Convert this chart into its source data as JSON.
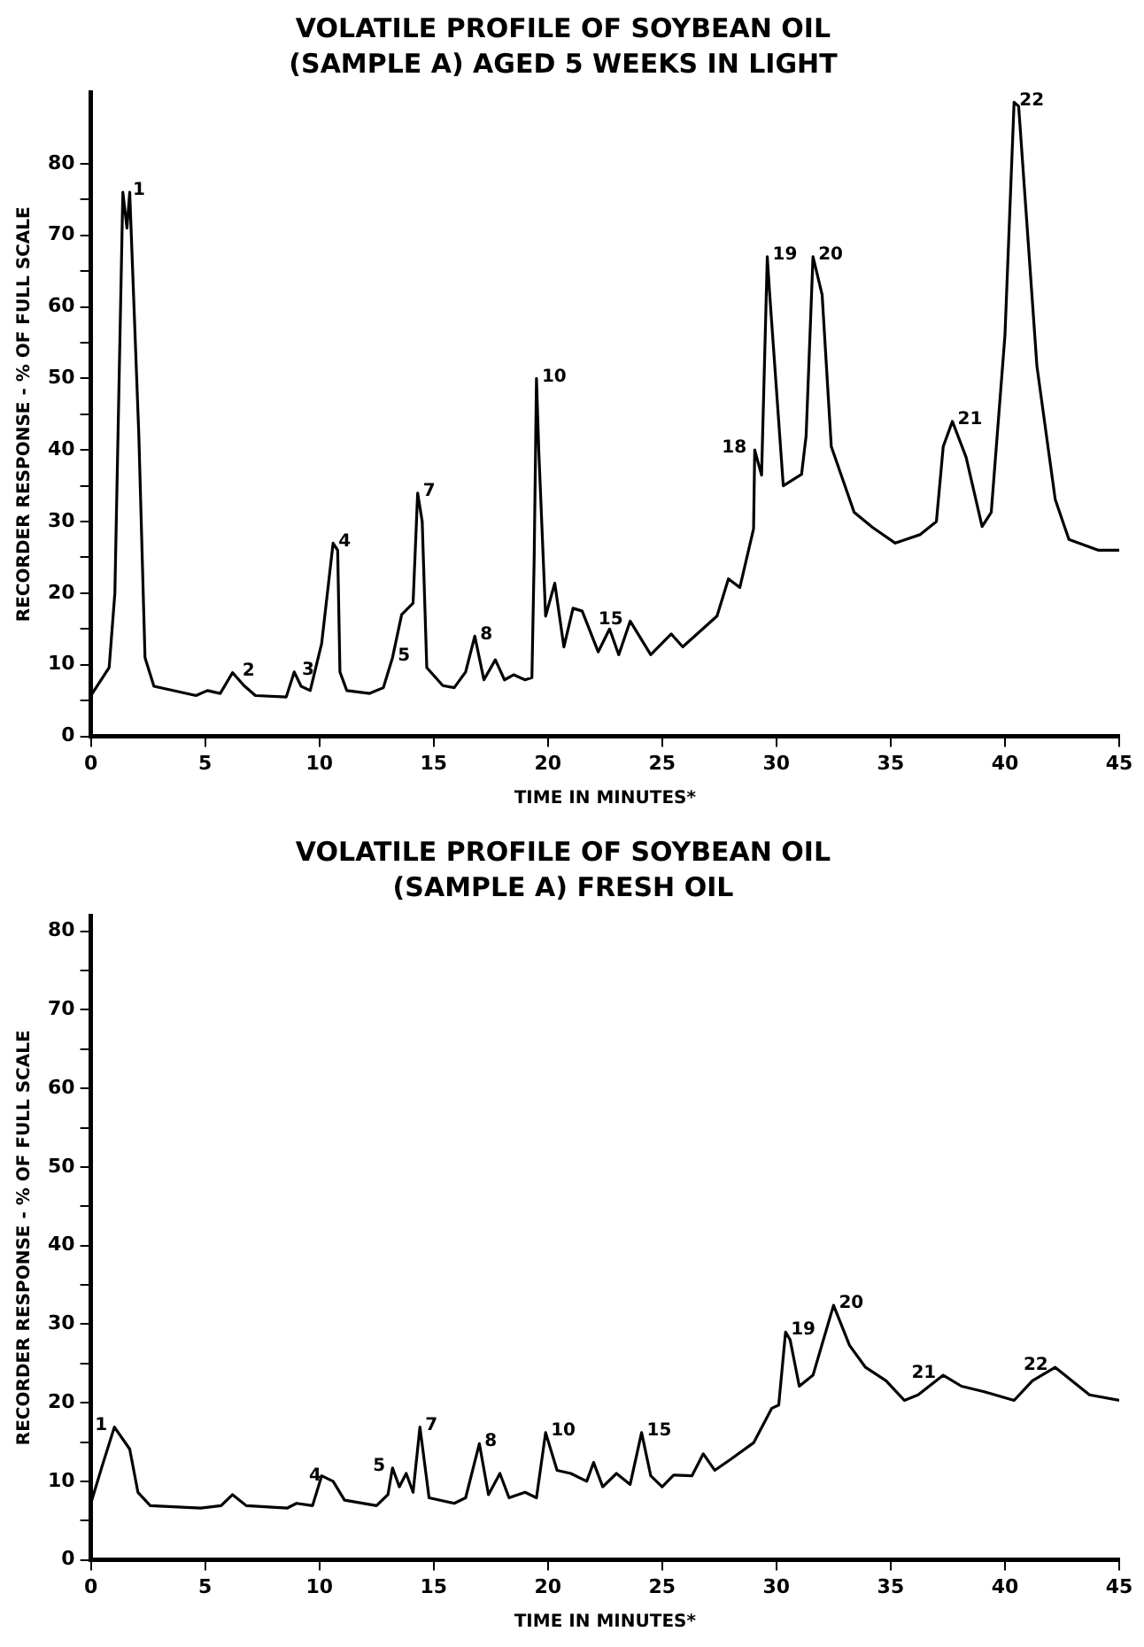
{
  "chart_data": [
    {
      "type": "line",
      "title": "VOLATILE PROFILE OF SOYBEAN OIL",
      "subtitle": "(SAMPLE A) AGED 5 WEEKS IN LIGHT",
      "xlabel": "TIME IN MINUTES*",
      "ylabel": "RECORDER RESPONSE - % OF FULL SCALE",
      "grid": false,
      "legend": false,
      "marker": "none",
      "line_style": "solid",
      "xlim": [
        0,
        45
      ],
      "xticks": [
        0,
        5,
        10,
        15,
        20,
        25,
        30,
        35,
        40,
        45
      ],
      "ylim": [
        0,
        90
      ],
      "yticks": [
        0,
        {
          "value": 5,
          "label": null
        },
        10,
        {
          "value": 15,
          "label": null
        },
        20,
        {
          "value": 25,
          "label": null
        },
        30,
        {
          "value": 35,
          "label": null
        },
        40,
        {
          "value": 45,
          "label": null
        },
        50,
        {
          "value": 55,
          "label": null
        },
        60,
        {
          "value": 65,
          "label": null
        },
        70,
        {
          "value": 75,
          "label": null
        },
        80
      ],
      "series": [
        {
          "color": "#000000",
          "x": [
            0,
            0.8,
            1.05,
            1.4,
            1.58,
            1.7,
            2.1,
            2.37,
            2.76,
            4.6,
            5.1,
            5.66,
            6.2,
            6.7,
            7.2,
            8.55,
            8.9,
            9.2,
            9.6,
            10.1,
            10.6,
            10.8,
            10.9,
            11.2,
            12.2,
            12.8,
            13.2,
            13.6,
            14.1,
            14.3,
            14.5,
            14.7,
            15.4,
            15.9,
            16.4,
            16.8,
            17.2,
            17.7,
            18.1,
            18.5,
            19.0,
            19.3,
            19.4,
            19.5,
            19.6,
            19.9,
            20.3,
            20.7,
            21.1,
            21.5,
            22.2,
            22.7,
            23.1,
            23.6,
            24.5,
            25.4,
            25.9,
            27.4,
            27.9,
            28.4,
            29.0,
            29.05,
            29.35,
            29.6,
            29.7,
            30.3,
            31.1,
            31.3,
            31.6,
            32.0,
            32.4,
            33.4,
            34.2,
            35.2,
            36.3,
            37.0,
            37.3,
            37.7,
            38.3,
            39.0,
            39.4,
            40.0,
            40.4,
            40.6,
            41.4,
            42.2,
            42.8,
            44.1,
            45
          ],
          "values": [
            5.7,
            9.6,
            20,
            76,
            71,
            76,
            42,
            11,
            7,
            5.7,
            6.4,
            6,
            8.9,
            7.1,
            5.7,
            5.5,
            9,
            7,
            6.4,
            13,
            27,
            26,
            9,
            6.4,
            6,
            6.8,
            11,
            17,
            18.6,
            34,
            30,
            9.6,
            7.1,
            6.8,
            9,
            14,
            7.9,
            10.7,
            7.9,
            8.6,
            7.9,
            8.2,
            25,
            50,
            40,
            16.8,
            21.4,
            12.5,
            17.9,
            17.5,
            11.8,
            15,
            11.4,
            16.1,
            11.4,
            14.3,
            12.5,
            16.8,
            22,
            20.8,
            29,
            40,
            36.5,
            67,
            62,
            35,
            36.6,
            42,
            67,
            61.7,
            40.5,
            31.3,
            29.2,
            27,
            28.2,
            30,
            40.5,
            44,
            39,
            29.3,
            31.3,
            56,
            88.6,
            88,
            51.7,
            33.1,
            27.5,
            26,
            26
          ]
        }
      ],
      "annotations": [
        {
          "text": "1",
          "x": 1.6,
          "y": 76
        },
        {
          "text": "2",
          "x": 6.4,
          "y": 8.9
        },
        {
          "text": "3",
          "x": 9.0,
          "y": 9
        },
        {
          "text": "4",
          "x": 10.6,
          "y": 27
        },
        {
          "text": "5",
          "x": 13.2,
          "y": 11
        },
        {
          "text": "7",
          "x": 14.3,
          "y": 34
        },
        {
          "text": "8",
          "x": 16.8,
          "y": 14
        },
        {
          "text": "10",
          "x": 19.5,
          "y": 50
        },
        {
          "text": "15",
          "x": 23.6,
          "y": 16.1
        },
        {
          "text": "18",
          "x": 29.0,
          "y": 40
        },
        {
          "text": "19",
          "x": 29.6,
          "y": 67
        },
        {
          "text": "20",
          "x": 31.6,
          "y": 67
        },
        {
          "text": "21",
          "x": 37.7,
          "y": 44
        },
        {
          "text": "22",
          "x": 40.4,
          "y": 88.6
        }
      ]
    },
    {
      "type": "line",
      "title": "VOLATILE PROFILE OF SOYBEAN OIL",
      "subtitle": "(SAMPLE A) FRESH OIL",
      "xlabel": "TIME IN MINUTES*",
      "ylabel": "RECORDER RESPONSE - % OF FULL SCALE",
      "grid": false,
      "legend": false,
      "marker": "none",
      "line_style": "solid",
      "xlim": [
        0,
        45
      ],
      "xticks": [
        0,
        5,
        10,
        15,
        20,
        25,
        30,
        35,
        40,
        45
      ],
      "ylim": [
        0,
        82
      ],
      "yticks": [
        0,
        {
          "value": 5,
          "label": null
        },
        10,
        {
          "value": 15,
          "label": null
        },
        20,
        {
          "value": 25,
          "label": null
        },
        30,
        {
          "value": 35,
          "label": null
        },
        40,
        {
          "value": 45,
          "label": null
        },
        50,
        {
          "value": 55,
          "label": null
        },
        60,
        {
          "value": 65,
          "label": null
        },
        70,
        {
          "value": 75,
          "label": null
        },
        80
      ],
      "series": [
        {
          "color": "#000000",
          "x": [
            0,
            0.5,
            1.03,
            1.7,
            2.06,
            2.6,
            4.8,
            5.7,
            6.2,
            6.8,
            8.6,
            9.0,
            9.7,
            10.1,
            10.6,
            11.1,
            12.5,
            13.0,
            13.2,
            13.5,
            13.8,
            14.1,
            14.4,
            14.8,
            15.9,
            16.4,
            17.0,
            17.4,
            17.9,
            18.3,
            19.0,
            19.5,
            19.9,
            20.4,
            21.0,
            21.7,
            22.0,
            22.4,
            23.0,
            23.6,
            24.1,
            24.5,
            25.0,
            25.5,
            26.3,
            26.8,
            27.3,
            28.0,
            29.0,
            29.8,
            30.1,
            30.4,
            30.6,
            31.0,
            31.6,
            32.5,
            33.2,
            33.9,
            34.8,
            35.6,
            36.2,
            37.3,
            38.1,
            39.1,
            40.4,
            41.2,
            42.2,
            43.7,
            45
          ],
          "values": [
            7.2,
            12,
            16.9,
            14.1,
            8.6,
            6.9,
            6.6,
            6.9,
            8.3,
            6.9,
            6.6,
            7.2,
            6.9,
            10.7,
            10,
            7.6,
            6.9,
            8.3,
            11.7,
            9.3,
            11,
            8.6,
            16.9,
            7.9,
            7.2,
            7.9,
            14.8,
            8.3,
            11,
            7.9,
            8.6,
            7.9,
            16.2,
            11.4,
            11,
            10,
            12.4,
            9.3,
            11,
            9.6,
            16.2,
            10.7,
            9.3,
            10.8,
            10.7,
            13.5,
            11.4,
            12.8,
            14.9,
            19.3,
            19.7,
            29,
            28,
            22.1,
            23.5,
            32.4,
            27.3,
            24.5,
            22.8,
            20.3,
            21,
            23.5,
            22.1,
            21.4,
            20.3,
            22.8,
            24.5,
            21,
            20.3
          ]
        }
      ],
      "annotations": [
        {
          "text": "1",
          "x": 1.03,
          "y": 16.9
        },
        {
          "text": "4",
          "x": 10.4,
          "y": 10.5
        },
        {
          "text": "5",
          "x": 13.2,
          "y": 11.7
        },
        {
          "text": "7",
          "x": 14.4,
          "y": 16.9
        },
        {
          "text": "8",
          "x": 17.0,
          "y": 14.8
        },
        {
          "text": "10",
          "x": 19.9,
          "y": 16.2
        },
        {
          "text": "15",
          "x": 24.1,
          "y": 16.2
        },
        {
          "text": "19",
          "x": 30.4,
          "y": 29
        },
        {
          "text": "20",
          "x": 32.5,
          "y": 32.4
        },
        {
          "text": "21",
          "x": 37.3,
          "y": 23.5
        },
        {
          "text": "22",
          "x": 42.2,
          "y": 24.5
        }
      ]
    }
  ]
}
